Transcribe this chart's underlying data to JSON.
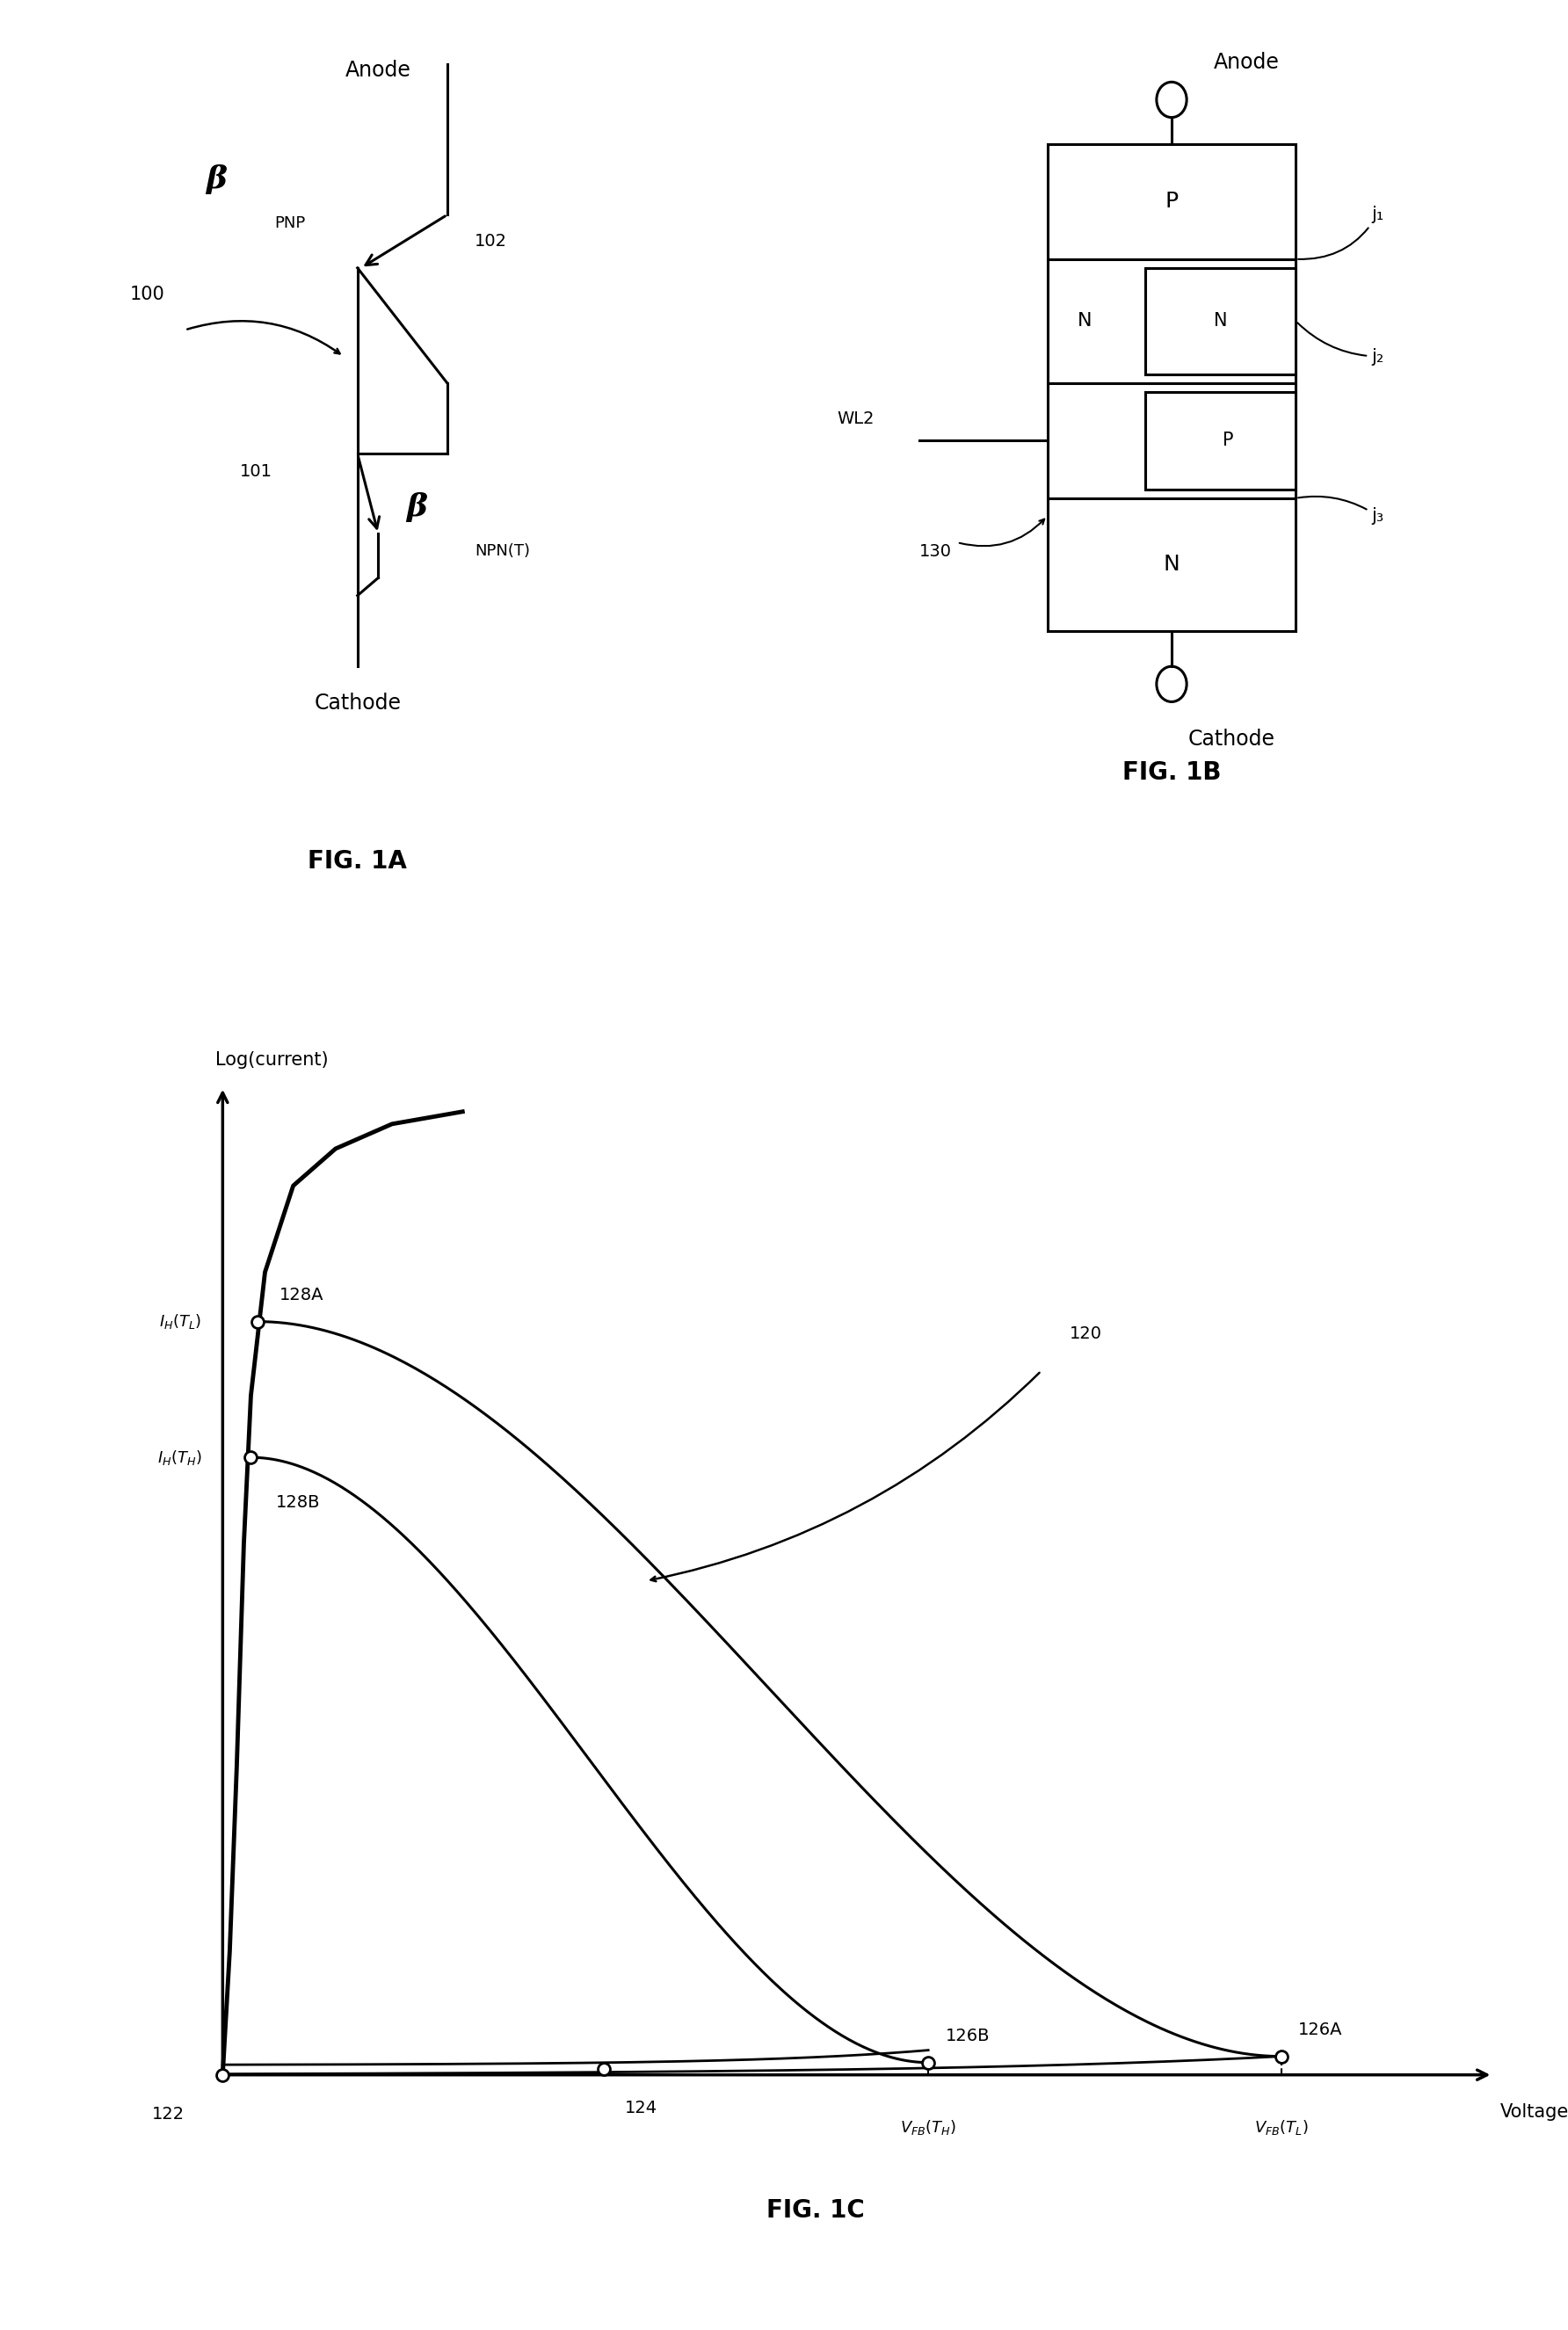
{
  "fig_width": 17.84,
  "fig_height": 26.51,
  "bg_color": "#ffffff",
  "fig1a": {
    "title": "FIG. 1A",
    "label_100": "100",
    "label_101": "101",
    "label_102": "102",
    "beta_pnp": "β",
    "beta_pnp_sub": "PNP",
    "beta_npn": "β",
    "beta_npn_sub": "NPN(T)",
    "anode_label": "Anode",
    "cathode_label": "Cathode"
  },
  "fig1b": {
    "title": "FIG. 1B",
    "anode_label": "Anode",
    "cathode_label": "Cathode",
    "wl2_label": "WL2",
    "label_130": "130",
    "j1": "j₁",
    "j2": "j₂",
    "j3": "j₃"
  },
  "fig1c": {
    "title": "FIG. 1C",
    "xlabel": "Voltage",
    "ylabel": "Log(current)",
    "label_120": "120",
    "label_122": "122",
    "label_124": "124",
    "label_126A": "126A",
    "label_126B": "126B",
    "label_128A": "128A",
    "label_128B": "128B",
    "label_IH_TL": "I_H(T_L)",
    "label_IH_TH": "I_H(T_H)",
    "label_VFB_TH": "V_FB(T_H)",
    "label_VFB_TL": "V_FB(T_L)"
  }
}
